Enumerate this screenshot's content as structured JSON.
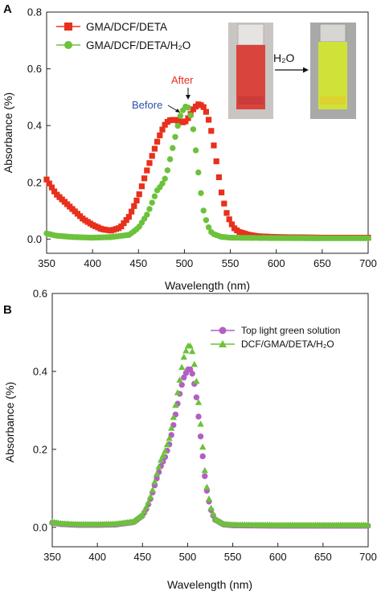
{
  "colors": {
    "red": "#e8301c",
    "green": "#6cc23a",
    "magenta": "#b25fc4",
    "before_label": "#2a52a8",
    "after_label": "#e8301c",
    "vial_red": "#d9443c",
    "vial_yellow": "#cfe23a"
  },
  "chart_data": [
    {
      "panel_label": "A",
      "type": "line",
      "xlabel": "Wavelength (nm)",
      "ylabel": "Absorbance (%)",
      "xlim": [
        350,
        700
      ],
      "ylim": [
        -0.05,
        0.8
      ],
      "xticks": [
        "350",
        "400",
        "450",
        "500",
        "550",
        "600",
        "650",
        "700"
      ],
      "yticks": [
        "0.0",
        "0.2",
        "0.4",
        "0.6",
        "0.8"
      ],
      "legend_position": "top-left",
      "series": [
        {
          "name": "GMA/DCF/DETA",
          "marker": "square",
          "color": "#e8301c",
          "x": [
            350,
            355,
            360,
            365,
            370,
            380,
            390,
            400,
            410,
            420,
            430,
            440,
            450,
            460,
            470,
            475,
            480,
            485,
            490,
            495,
            500,
            505,
            510,
            515,
            520,
            525,
            530,
            535,
            540,
            545,
            550,
            555,
            560,
            570,
            580,
            600,
            650,
            700
          ],
          "y": [
            0.21,
            0.185,
            0.16,
            0.145,
            0.13,
            0.1,
            0.07,
            0.05,
            0.035,
            0.03,
            0.04,
            0.08,
            0.15,
            0.25,
            0.34,
            0.38,
            0.41,
            0.42,
            0.42,
            0.415,
            0.41,
            0.43,
            0.46,
            0.475,
            0.47,
            0.44,
            0.37,
            0.27,
            0.17,
            0.1,
            0.06,
            0.035,
            0.025,
            0.015,
            0.01,
            0.007,
            0.005,
            0.005
          ]
        },
        {
          "name": "GMA/DCF/DETA/H₂O",
          "marker": "circle",
          "color": "#6cc23a",
          "x": [
            350,
            360,
            380,
            400,
            420,
            440,
            450,
            460,
            465,
            470,
            475,
            480,
            485,
            490,
            495,
            500,
            503,
            506,
            510,
            515,
            520,
            525,
            530,
            540,
            550,
            580,
            650,
            700
          ],
          "y": [
            0.02,
            0.012,
            0.007,
            0.005,
            0.007,
            0.015,
            0.04,
            0.09,
            0.13,
            0.17,
            0.19,
            0.22,
            0.29,
            0.36,
            0.43,
            0.465,
            0.47,
            0.45,
            0.38,
            0.24,
            0.11,
            0.05,
            0.02,
            0.008,
            0.005,
            0.004,
            0.003,
            0.003
          ]
        }
      ],
      "annotations": {
        "before": "Before",
        "after": "After",
        "h2o": "H₂O"
      }
    },
    {
      "panel_label": "B",
      "type": "line",
      "xlabel": "Wavelength (nm)",
      "ylabel": "Absorbance (%)",
      "xlim": [
        350,
        700
      ],
      "ylim": [
        -0.05,
        0.6
      ],
      "xticks": [
        "350",
        "400",
        "450",
        "500",
        "550",
        "600",
        "650",
        "700"
      ],
      "yticks": [
        "0.0",
        "0.2",
        "0.4",
        "0.6"
      ],
      "legend_position": "top-right",
      "series": [
        {
          "name": "Top light green solution",
          "marker": "circle",
          "color": "#b25fc4",
          "x": [
            350,
            360,
            380,
            400,
            420,
            440,
            450,
            455,
            460,
            465,
            470,
            475,
            480,
            485,
            490,
            495,
            500,
            503,
            506,
            510,
            515,
            520,
            525,
            530,
            540,
            550,
            600,
            650,
            700
          ],
          "y": [
            0.012,
            0.008,
            0.006,
            0.006,
            0.007,
            0.013,
            0.03,
            0.05,
            0.08,
            0.12,
            0.155,
            0.18,
            0.215,
            0.27,
            0.33,
            0.38,
            0.405,
            0.405,
            0.39,
            0.33,
            0.22,
            0.11,
            0.05,
            0.02,
            0.007,
            0.005,
            0.004,
            0.004,
            0.004
          ]
        },
        {
          "name": "DCF/GMA/DETA/H₂O",
          "marker": "triangle",
          "color": "#6cc23a",
          "x": [
            350,
            360,
            380,
            400,
            420,
            440,
            450,
            455,
            460,
            465,
            470,
            475,
            480,
            485,
            490,
            495,
            500,
            503,
            506,
            510,
            515,
            520,
            525,
            530,
            540,
            550,
            600,
            650,
            700
          ],
          "y": [
            0.013,
            0.009,
            0.007,
            0.007,
            0.008,
            0.014,
            0.032,
            0.055,
            0.085,
            0.13,
            0.17,
            0.195,
            0.23,
            0.29,
            0.36,
            0.43,
            0.465,
            0.465,
            0.445,
            0.37,
            0.25,
            0.12,
            0.055,
            0.022,
            0.008,
            0.006,
            0.005,
            0.005,
            0.005
          ]
        }
      ]
    }
  ]
}
